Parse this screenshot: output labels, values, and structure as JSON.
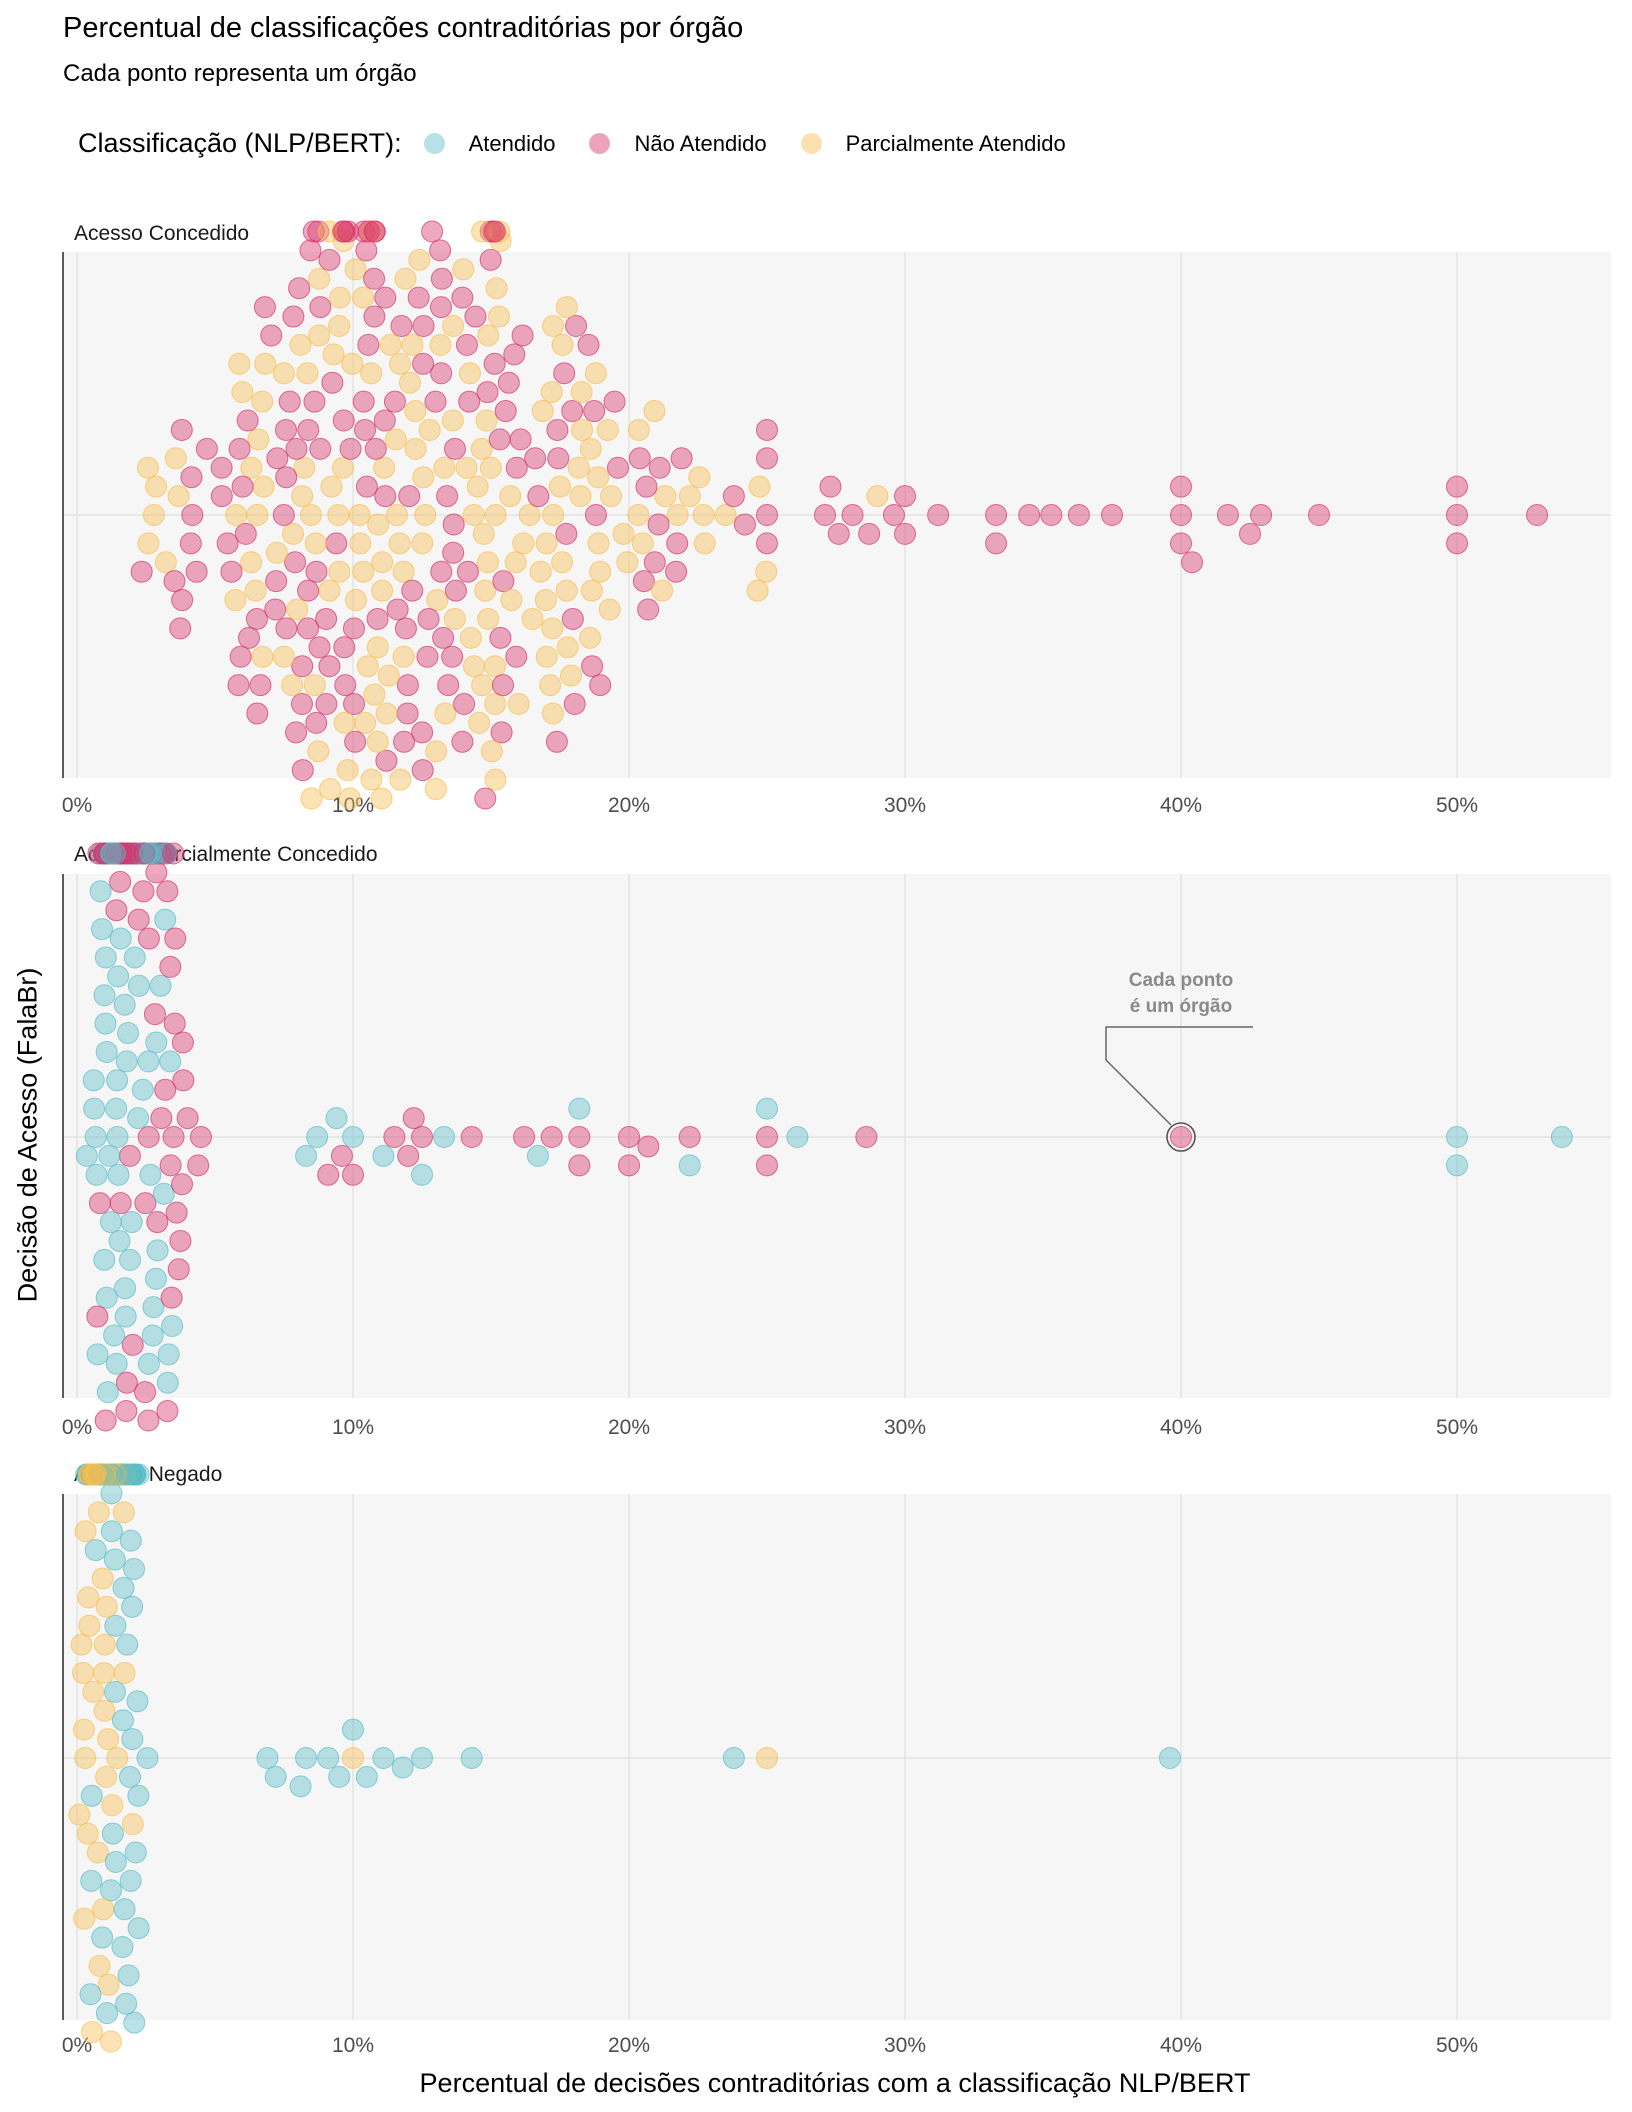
{
  "title": "Percentual de classificações contraditórias por órgão",
  "subtitle": "Cada ponto representa um órgão",
  "legend": {
    "title": "Classificação (NLP/BERT):",
    "items": [
      {
        "label": "Atendido",
        "color": "#5bbcc9"
      },
      {
        "label": "Não Atendido",
        "color": "#d6336c"
      },
      {
        "label": "Parcialmente Atendido",
        "color": "#f9bd4f"
      }
    ]
  },
  "axis": {
    "xlabel": "Percentual de decisões contraditórias com a classificação NLP/BERT",
    "ylabel": "Decisão de Acesso (FalaBr)",
    "ticks": [
      "0%",
      "10%",
      "20%",
      "30%",
      "40%",
      "50%"
    ]
  },
  "annotation": {
    "line1": "Cada ponto",
    "line2": "é um órgão"
  },
  "chart_data": {
    "type": "scatter",
    "subtype": "beeswarm",
    "x_unit": "percent",
    "xlim": [
      0,
      55
    ],
    "x_ticks": [
      0,
      10,
      20,
      30,
      40,
      50
    ],
    "grid": true,
    "legend_position": "top",
    "color_by": "Classificação (NLP/BERT)",
    "panels": [
      {
        "label": "Acesso Concedido",
        "groups": [
          {
            "name": "Parcialmente Atendido",
            "color": "#f9bd4f",
            "count": 185,
            "distribution": {
              "min": 1.5,
              "mode": 10,
              "max": 29
            },
            "values": [
              29.0,
              23.5,
              22.7,
              22.2,
              21.2,
              20.5,
              19.8,
              19.3,
              18.8,
              18.3,
              17.9,
              17.5,
              17.2,
              16.8,
              16.4,
              16.0,
              15.7
            ]
          },
          {
            "name": "Não Atendido",
            "color": "#d6336c",
            "count": 205,
            "distribution": {
              "min": 1.5,
              "mode": 9,
              "max": 53
            },
            "values": [
              23.8,
              24.2,
              25.0,
              25.0,
              25.0,
              25.0,
              27.1,
              27.3,
              27.6,
              28.1,
              28.7,
              29.6,
              30.0,
              30.0,
              31.2,
              33.3,
              33.3,
              34.5,
              35.3,
              36.3,
              37.5,
              40.0,
              40.0,
              40.0,
              40.4,
              41.7,
              42.5,
              42.9,
              45.0,
              50.0,
              50.0,
              50.0,
              52.9
            ]
          }
        ]
      },
      {
        "label": "Acesso Parcialmente Concedido",
        "groups": [
          {
            "name": "Atendido",
            "color": "#5bbcc9",
            "count": 130,
            "distribution": {
              "min": 0.2,
              "mode": 1.5,
              "max": 53.8
            },
            "values": [
              8.3,
              8.7,
              9.4,
              10.0,
              11.1,
              12.5,
              13.3,
              16.7,
              18.2,
              22.2,
              25.0,
              26.1,
              50.0,
              50.0,
              53.8
            ]
          },
          {
            "name": "Não Atendido",
            "color": "#d6336c",
            "count": 110,
            "distribution": {
              "min": 0.3,
              "mode": 1.8,
              "max": 40
            },
            "values": [
              9.1,
              9.6,
              10.0,
              11.5,
              12.0,
              12.2,
              12.5,
              14.3,
              16.2,
              17.2,
              18.2,
              18.2,
              20.0,
              20.0,
              20.7,
              22.2,
              25.0,
              25.0,
              28.6,
              40.0
            ]
          }
        ]
      },
      {
        "label": "Acesso Negado",
        "groups": [
          {
            "name": "Atendido",
            "color": "#5bbcc9",
            "count": 105,
            "distribution": {
              "min": 0.2,
              "mode": 1.0,
              "max": 39.6
            },
            "values": [
              6.9,
              7.2,
              8.1,
              8.3,
              9.1,
              9.5,
              10.0,
              10.5,
              11.1,
              11.8,
              12.5,
              14.3,
              23.8,
              39.6
            ]
          },
          {
            "name": "Parcialmente Atendido",
            "color": "#f9bd4f",
            "count": 95,
            "distribution": {
              "min": 0.0,
              "mode": 0.8,
              "max": 25.0
            },
            "values": [
              10.0,
              25.0
            ]
          }
        ]
      }
    ]
  }
}
